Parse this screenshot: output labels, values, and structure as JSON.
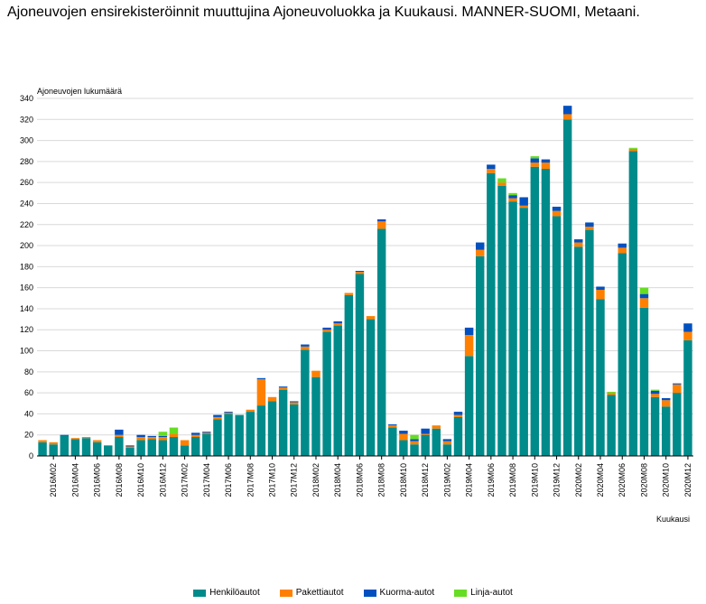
{
  "title": "Ajoneuvojen ensirekisteröinnit muuttujina Ajoneuvoluokka ja Kuukausi. MANNER-SUOMI, Metaani.",
  "chart_data": {
    "type": "bar",
    "stacked": true,
    "ylabel": "Ajoneuvojen lukumäärä",
    "xlabel": "Kuukausi",
    "ylim": [
      0,
      340
    ],
    "yticks": [
      0,
      20,
      40,
      60,
      80,
      100,
      120,
      140,
      160,
      180,
      200,
      220,
      240,
      260,
      280,
      300,
      320,
      340
    ],
    "grid": true,
    "legend_position": "bottom",
    "categories": [
      "2016M01",
      "2016M02",
      "2016M03",
      "2016M04",
      "2016M05",
      "2016M06",
      "2016M07",
      "2016M08",
      "2016M09",
      "2016M10",
      "2016M11",
      "2016M12",
      "2017M01",
      "2017M02",
      "2017M03",
      "2017M04",
      "2017M05",
      "2017M06",
      "2017M07",
      "2017M08",
      "2017M09",
      "2017M10",
      "2017M11",
      "2017M12",
      "2018M01",
      "2018M02",
      "2018M03",
      "2018M04",
      "2018M05",
      "2018M06",
      "2018M07",
      "2018M08",
      "2018M09",
      "2018M10",
      "2018M11",
      "2018M12",
      "2019M01",
      "2019M02",
      "2019M03",
      "2019M04",
      "2019M05",
      "2019M06",
      "2019M07",
      "2019M08",
      "2019M09",
      "2019M10",
      "2019M11",
      "2019M12",
      "2020M01",
      "2020M02",
      "2020M03",
      "2020M04",
      "2020M05",
      "2020M06",
      "2020M07",
      "2020M08",
      "2020M09",
      "2020M10",
      "2020M11",
      "2020M12"
    ],
    "x_tick_labels": [
      "2016M02",
      "2016M04",
      "2016M06",
      "2016M08",
      "2016M10",
      "2016M12",
      "2017M02",
      "2017M04",
      "2017M06",
      "2017M08",
      "2017M10",
      "2017M12",
      "2018M02",
      "2018M04",
      "2018M06",
      "2018M08",
      "2018M10",
      "2018M12",
      "2019M02",
      "2019M04",
      "2019M06",
      "2019M08",
      "2019M10",
      "2019M12",
      "2020M02",
      "2020M04",
      "2020M06",
      "2020M08",
      "2020M10",
      "2020M12"
    ],
    "series": [
      {
        "name": "Henkilöautot",
        "color": "#008B8B",
        "values": [
          13,
          11,
          19,
          16,
          17,
          13,
          10,
          18,
          8,
          15,
          16,
          15,
          18,
          10,
          18,
          21,
          35,
          40,
          39,
          42,
          48,
          52,
          63,
          49,
          101,
          75,
          118,
          124,
          153,
          173,
          130,
          216,
          27,
          15,
          11,
          20,
          26,
          11,
          37,
          95,
          190,
          269,
          257,
          242,
          236,
          275,
          273,
          228,
          320,
          199,
          215,
          149,
          58,
          193,
          290,
          141,
          56,
          47,
          60,
          110
        ]
      },
      {
        "name": "Pakettiautot",
        "color": "#FF8000",
        "values": [
          2,
          2,
          0,
          1,
          1,
          2,
          0,
          2,
          1,
          3,
          2,
          3,
          3,
          5,
          2,
          1,
          2,
          1,
          0,
          2,
          25,
          4,
          2,
          2,
          3,
          6,
          2,
          2,
          2,
          2,
          3,
          7,
          2,
          6,
          3,
          1,
          3,
          3,
          2,
          20,
          6,
          4,
          3,
          3,
          2,
          4,
          6,
          5,
          5,
          4,
          3,
          9,
          2,
          5,
          2,
          9,
          3,
          6,
          8,
          8
        ]
      },
      {
        "name": "Kuorma-autot",
        "color": "#0050C0",
        "values": [
          0,
          0,
          1,
          0,
          0,
          0,
          0,
          5,
          1,
          2,
          1,
          1,
          0,
          0,
          2,
          1,
          2,
          1,
          0,
          0,
          1,
          0,
          1,
          1,
          2,
          0,
          2,
          2,
          0,
          1,
          0,
          2,
          1,
          3,
          2,
          5,
          0,
          2,
          3,
          7,
          7,
          4,
          0,
          3,
          8,
          4,
          3,
          4,
          8,
          3,
          4,
          3,
          0,
          4,
          0,
          4,
          3,
          2,
          1,
          8
        ]
      },
      {
        "name": "Linja-autot",
        "color": "#66DD22",
        "values": [
          0,
          0,
          0,
          0,
          0,
          0,
          0,
          0,
          0,
          0,
          0,
          4,
          6,
          0,
          0,
          0,
          0,
          0,
          0,
          0,
          0,
          0,
          0,
          0,
          0,
          0,
          0,
          0,
          0,
          0,
          0,
          0,
          0,
          0,
          4,
          0,
          0,
          0,
          0,
          0,
          0,
          0,
          4,
          2,
          0,
          2,
          0,
          0,
          0,
          0,
          0,
          0,
          1,
          0,
          1,
          6,
          1,
          0,
          0,
          0
        ]
      }
    ]
  }
}
